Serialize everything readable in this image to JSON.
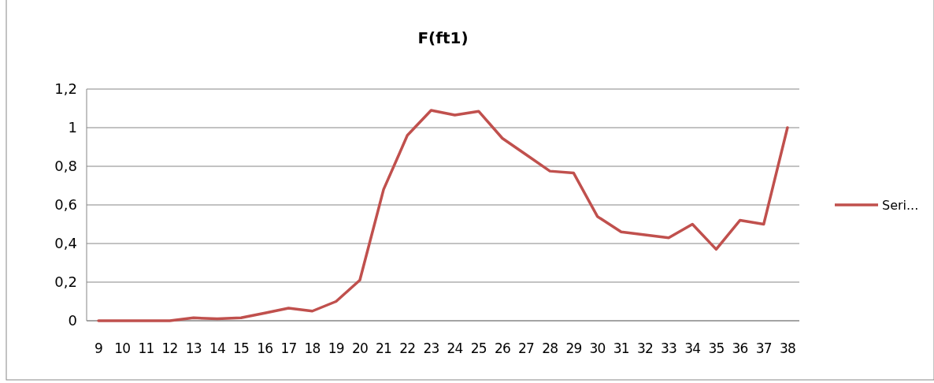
{
  "chart_data": {
    "type": "line",
    "title": "F(ft1)",
    "categories": [
      "9",
      "10",
      "11",
      "12",
      "13",
      "14",
      "15",
      "16",
      "17",
      "18",
      "19",
      "20",
      "21",
      "22",
      "23",
      "24",
      "25",
      "26",
      "27",
      "28",
      "29",
      "30",
      "31",
      "32",
      "33",
      "34",
      "35",
      "36",
      "37",
      "38"
    ],
    "series": [
      {
        "name": "Seri...",
        "color": "#c0504d",
        "values": [
          0,
          0,
          0,
          0,
          0.015,
          0.01,
          0.015,
          0.04,
          0.065,
          0.05,
          0.1,
          0.21,
          0.68,
          0.96,
          1.09,
          1.065,
          1.085,
          0.945,
          0.86,
          0.775,
          0.765,
          0.54,
          0.46,
          0.445,
          0.43,
          0.5,
          0.37,
          0.52,
          0.5,
          1.0
        ]
      }
    ],
    "ylim": [
      0,
      1.2
    ],
    "yticks": [
      {
        "value": 0,
        "label": "0"
      },
      {
        "value": 0.2,
        "label": "0,2"
      },
      {
        "value": 0.4,
        "label": "0,4"
      },
      {
        "value": 0.6,
        "label": "0,6"
      },
      {
        "value": 0.8,
        "label": "0,8"
      },
      {
        "value": 1,
        "label": "1"
      },
      {
        "value": 1.2,
        "label": "1,2"
      }
    ],
    "grid": "y",
    "legend": "right",
    "marker": "none",
    "line_style": "solid"
  }
}
